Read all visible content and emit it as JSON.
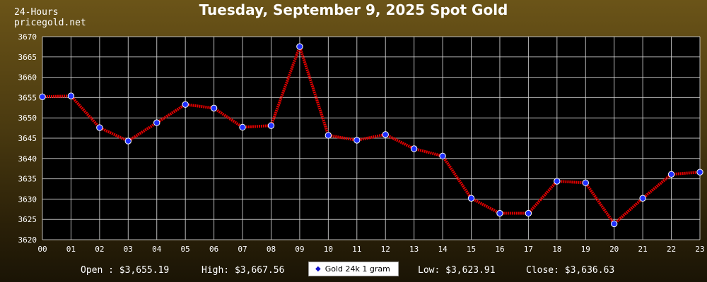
{
  "header": {
    "title": "Tuesday, September 9, 2025 Spot Gold",
    "period": "24-Hours",
    "site": "pricegold.net"
  },
  "footer": {
    "open": "Open : $3,655.19",
    "high": "High: $3,667.56",
    "low": "Low: $3,623.91",
    "close": "Close: $3,636.63"
  },
  "colors": {
    "line": "#e00000",
    "point": "#1f2fff",
    "grid": "#d8d8d8",
    "plot_bg": "#000000"
  },
  "chart_data": {
    "type": "line",
    "x": [
      "00",
      "01",
      "02",
      "03",
      "04",
      "05",
      "06",
      "07",
      "08",
      "09",
      "10",
      "11",
      "12",
      "13",
      "14",
      "15",
      "16",
      "17",
      "18",
      "19",
      "20",
      "21",
      "22",
      "23"
    ],
    "series": [
      {
        "name": "Gold 24k 1 gram",
        "values": [
          3655.19,
          3655.4,
          3647.6,
          3644.3,
          3648.8,
          3653.3,
          3652.4,
          3647.7,
          3648.1,
          3667.56,
          3645.7,
          3644.5,
          3645.9,
          3642.4,
          3640.6,
          3630.2,
          3626.5,
          3626.5,
          3634.4,
          3634.0,
          3623.91,
          3630.2,
          3636.1,
          3636.63
        ]
      }
    ],
    "ylim": [
      3620,
      3670
    ],
    "yticks": [
      3620,
      3625,
      3630,
      3635,
      3640,
      3645,
      3650,
      3655,
      3660,
      3665,
      3670
    ],
    "grid": true,
    "legend": "bottom-center",
    "title": "Tuesday, September 9, 2025 Spot Gold"
  }
}
